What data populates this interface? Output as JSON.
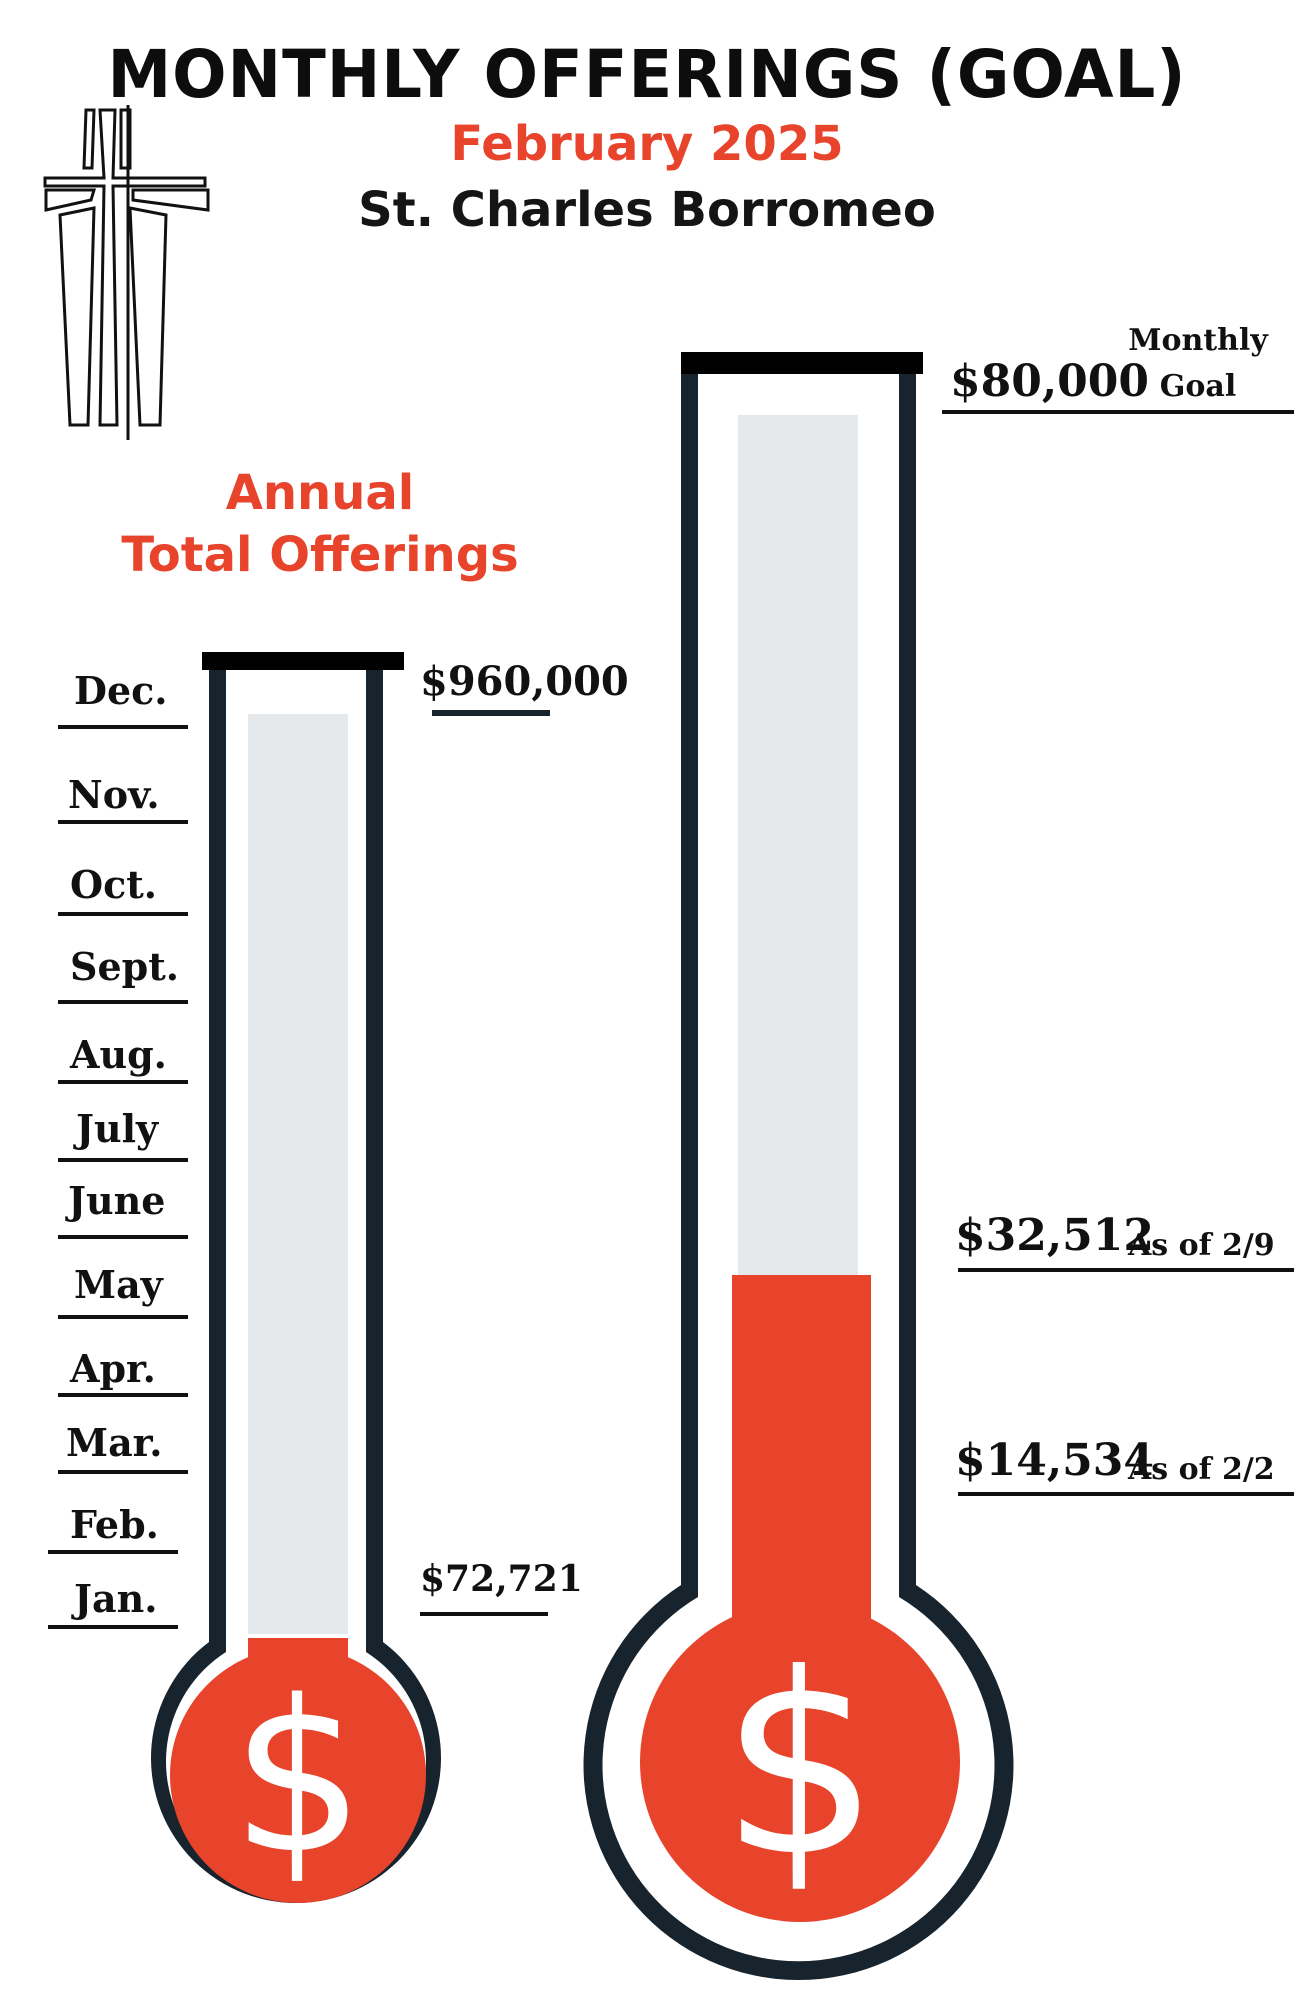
{
  "header": {
    "title": "MONTHLY OFFERINGS (GOAL)",
    "subtitle": "February 2025",
    "parish": "St. Charles Borromeo"
  },
  "annual": {
    "heading_line1": "Annual",
    "heading_line2": "Total Offerings",
    "goal_label": "$960,000",
    "current_label": "$72,721",
    "months": [
      "Dec.",
      "Nov.",
      "Oct.",
      "Sept.",
      "Aug.",
      "July",
      "June",
      "May",
      "Apr.",
      "Mar.",
      "Feb.",
      "Jan."
    ],
    "goal_value": 960000,
    "current_value": 72721
  },
  "monthly": {
    "goal_label": "$80,000",
    "goal_caption_line1": "Monthly",
    "goal_caption_line2": "Goal",
    "milestones": [
      {
        "amount": "$32,512",
        "note": "As of 2/9"
      },
      {
        "amount": "$14,534",
        "note": "As of 2/2"
      }
    ],
    "goal_value": 80000,
    "current_value": 32512
  },
  "icons": {
    "cross": "cross-icon",
    "dollar": "dollar-sign-icon"
  },
  "colors": {
    "fill_red": "#e8432b",
    "outline_dark": "#17242e",
    "tube_empty": "#e6e9ec",
    "cap_black": "#000000"
  }
}
